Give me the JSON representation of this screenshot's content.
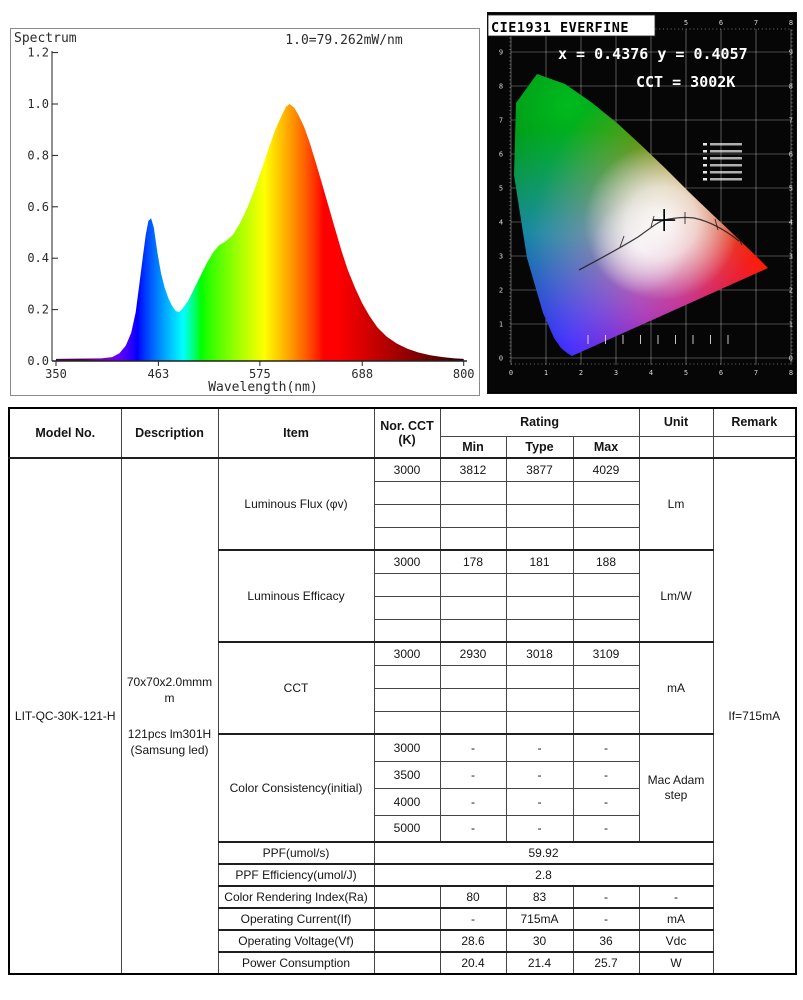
{
  "chart_data": [
    {
      "type": "area",
      "title": "Spectrum",
      "annotation": "1.0=79.262mW/nm",
      "xlabel": "Wavelength(nm)",
      "xlim": [
        350,
        800
      ],
      "ylim": [
        0,
        1.2
      ],
      "x_tick_labels": [
        "350",
        "463",
        "575",
        "688",
        "800"
      ],
      "y_tick_labels": [
        "0.0",
        "0.2",
        "0.4",
        "0.6",
        "0.8",
        "1.0",
        "1.2"
      ],
      "x": [
        350,
        400,
        412,
        420,
        427,
        433,
        438,
        442,
        446,
        449,
        452,
        455,
        458,
        462,
        466,
        470,
        474,
        478,
        482,
        486,
        490,
        496,
        503,
        510,
        517,
        524,
        530,
        537,
        545,
        553,
        561,
        569,
        577,
        585,
        592,
        599,
        604,
        608,
        613,
        618,
        624,
        630,
        637,
        644,
        651,
        658,
        665,
        672,
        680,
        688,
        696,
        705,
        715,
        726,
        738,
        750,
        763,
        777,
        790,
        800
      ],
      "y": [
        0.008,
        0.01,
        0.015,
        0.03,
        0.06,
        0.11,
        0.19,
        0.3,
        0.41,
        0.49,
        0.545,
        0.555,
        0.52,
        0.42,
        0.34,
        0.285,
        0.245,
        0.215,
        0.195,
        0.19,
        0.205,
        0.235,
        0.285,
        0.335,
        0.385,
        0.425,
        0.45,
        0.465,
        0.49,
        0.535,
        0.595,
        0.665,
        0.745,
        0.83,
        0.9,
        0.955,
        0.99,
        1.0,
        0.985,
        0.955,
        0.91,
        0.85,
        0.77,
        0.685,
        0.6,
        0.515,
        0.43,
        0.355,
        0.285,
        0.225,
        0.175,
        0.13,
        0.095,
        0.068,
        0.048,
        0.033,
        0.022,
        0.015,
        0.01,
        0.008
      ]
    },
    {
      "type": "scatter",
      "title": "CIE1931 EVERFINE",
      "readout_xy": "x = 0.4376 y = 0.4057",
      "readout_cct": "CCT = 3002K",
      "point": {
        "x": 0.4376,
        "y": 0.4057
      },
      "cct_k": 3002,
      "xlim": [
        0,
        0.8
      ],
      "ylim": [
        0,
        0.9
      ],
      "x_tick_labels": [
        "0",
        "1",
        "2",
        "3",
        "4",
        "5",
        "6",
        "7",
        "8"
      ],
      "y_tick_labels": [
        "0",
        "1",
        "2",
        "3",
        "4",
        "5",
        "6",
        "7",
        "8",
        "9"
      ]
    }
  ],
  "table": {
    "header": {
      "model": "Model No.",
      "description": "Description",
      "item": "Item",
      "nor_cct_1": "Nor. CCT",
      "nor_cct_2": "(K)",
      "rating": "Rating",
      "min": "Min",
      "type": "Type",
      "max": "Max",
      "unit": "Unit",
      "remark": "Remark"
    },
    "model_no": "LIT-QC-30K-121-H",
    "description_lines": [
      "70x70x2.0mmm",
      "m",
      "",
      "121pcs lm301H",
      "(Samsung led)"
    ],
    "remark": "If=715mA",
    "blocks": [
      {
        "item": "Luminous Flux (φv)",
        "unit": [
          "Lm"
        ],
        "rows": [
          [
            "3000",
            "3812",
            "3877",
            "4029"
          ],
          [
            "",
            "",
            "",
            ""
          ],
          [
            "",
            "",
            "",
            ""
          ],
          [
            "",
            "",
            "",
            ""
          ]
        ]
      },
      {
        "item": "Luminous Efficacy",
        "unit": [
          "Lm/W"
        ],
        "rows": [
          [
            "3000",
            "178",
            "181",
            "188"
          ],
          [
            "",
            "",
            "",
            ""
          ],
          [
            "",
            "",
            "",
            ""
          ],
          [
            "",
            "",
            "",
            ""
          ]
        ]
      },
      {
        "item": "CCT",
        "unit": [
          "mA"
        ],
        "rows": [
          [
            "3000",
            "2930",
            "3018",
            "3109"
          ],
          [
            "",
            "",
            "",
            ""
          ],
          [
            "",
            "",
            "",
            ""
          ],
          [
            "",
            "",
            "",
            ""
          ]
        ]
      },
      {
        "item": "Color Consistency(initial)",
        "unit": [
          "Mac Adam",
          "step"
        ],
        "rows": [
          [
            "3000",
            "-",
            "-",
            "-"
          ],
          [
            "3500",
            "-",
            "-",
            "-"
          ],
          [
            "4000",
            "-",
            "-",
            "-"
          ],
          [
            "5000",
            "-",
            "-",
            "-"
          ]
        ]
      }
    ],
    "span_rows": [
      {
        "item": "PPF(umol/s)",
        "value": "59.92"
      },
      {
        "item": "PPF Efficiency(umol/J)",
        "value": "2.8"
      }
    ],
    "single_rows": [
      {
        "item": "Color Rendering Index(Ra)",
        "cct": "",
        "min": "80",
        "type": "83",
        "max": "-",
        "unit": "-"
      },
      {
        "item": "Operating Current(If)",
        "cct": "",
        "min": "-",
        "type": "715mA",
        "max": "-",
        "unit": "mA"
      },
      {
        "item": "Operating Voltage(Vf)",
        "cct": "",
        "min": "28.6",
        "type": "30",
        "max": "36",
        "unit": "Vdc"
      },
      {
        "item": "Power Consumption",
        "cct": "",
        "min": "20.4",
        "type": "21.4",
        "max": "25.7",
        "unit": "W"
      }
    ]
  },
  "colors": {
    "cie_grid": "#ffffff",
    "cie_background": "#060606",
    "table_border": "#000000"
  }
}
